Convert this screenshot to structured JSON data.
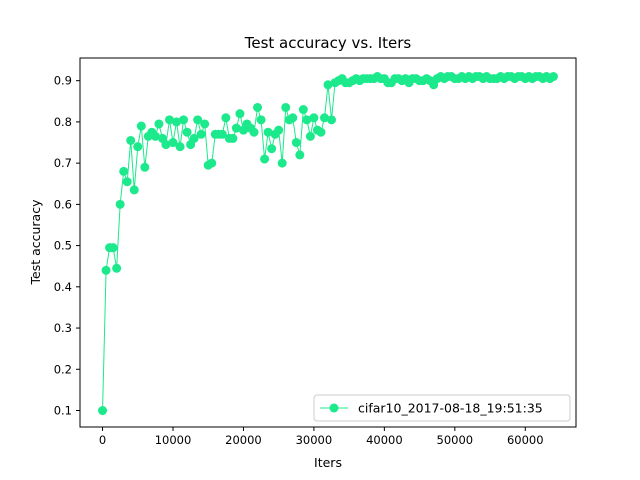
{
  "chart_data": {
    "type": "line",
    "title": "Test accuracy  vs. Iters",
    "xlabel": "Iters",
    "ylabel": "Test accuracy",
    "xlim": [
      -3200,
      67200
    ],
    "ylim": [
      0.06,
      0.955
    ],
    "xticks": [
      0,
      10000,
      20000,
      30000,
      40000,
      50000,
      60000
    ],
    "xtick_labels": [
      "0",
      "10000",
      "20000",
      "30000",
      "40000",
      "50000",
      "60000"
    ],
    "yticks": [
      0.1,
      0.2,
      0.3,
      0.4,
      0.5,
      0.6,
      0.7,
      0.8,
      0.9
    ],
    "ytick_labels": [
      "0.1",
      "0.2",
      "0.3",
      "0.4",
      "0.5",
      "0.6",
      "0.7",
      "0.8",
      "0.9"
    ],
    "grid": false,
    "legend_position": "lower-right",
    "series": [
      {
        "name": "cifar10_2017-08-18_19:51:35",
        "color": "#1ce98b",
        "marker": "circle",
        "x": [
          0,
          500,
          1000,
          1500,
          2000,
          2500,
          3000,
          3500,
          4000,
          4500,
          5000,
          5500,
          6000,
          6500,
          7000,
          7500,
          8000,
          8500,
          9000,
          9500,
          10000,
          10500,
          11000,
          11500,
          12000,
          12500,
          13000,
          13500,
          14000,
          14500,
          15000,
          15500,
          16000,
          16500,
          17000,
          17500,
          18000,
          18500,
          19000,
          19500,
          20000,
          20500,
          21000,
          21500,
          22000,
          22500,
          23000,
          23500,
          24000,
          24500,
          25000,
          25500,
          26000,
          26500,
          27000,
          27500,
          28000,
          28500,
          29000,
          29500,
          30000,
          30500,
          31000,
          31500,
          32000,
          32500,
          33000,
          33500,
          34000,
          34500,
          35000,
          35500,
          36000,
          36500,
          37000,
          37500,
          38000,
          38500,
          39000,
          39500,
          40000,
          40500,
          41000,
          41500,
          42000,
          42500,
          43000,
          43500,
          44000,
          44500,
          45000,
          45500,
          46000,
          46500,
          47000,
          47500,
          48000,
          48500,
          49000,
          49500,
          50000,
          50500,
          51000,
          51500,
          52000,
          52500,
          53000,
          53500,
          54000,
          54500,
          55000,
          55500,
          56000,
          56500,
          57000,
          57500,
          58000,
          58500,
          59000,
          59500,
          60000,
          60500,
          61000,
          61500,
          62000,
          62500,
          63000,
          63500,
          64000
        ],
        "y": [
          0.1,
          0.44,
          0.495,
          0.495,
          0.445,
          0.6,
          0.68,
          0.655,
          0.755,
          0.635,
          0.74,
          0.79,
          0.69,
          0.765,
          0.775,
          0.765,
          0.795,
          0.76,
          0.745,
          0.805,
          0.75,
          0.8,
          0.74,
          0.805,
          0.775,
          0.745,
          0.76,
          0.805,
          0.77,
          0.795,
          0.695,
          0.7,
          0.77,
          0.77,
          0.77,
          0.81,
          0.76,
          0.76,
          0.785,
          0.82,
          0.78,
          0.795,
          0.785,
          0.775,
          0.835,
          0.805,
          0.71,
          0.775,
          0.735,
          0.77,
          0.78,
          0.7,
          0.835,
          0.805,
          0.81,
          0.75,
          0.72,
          0.83,
          0.805,
          0.765,
          0.81,
          0.78,
          0.775,
          0.81,
          0.89,
          0.805,
          0.895,
          0.9,
          0.905,
          0.895,
          0.895,
          0.9,
          0.905,
          0.9,
          0.905,
          0.905,
          0.905,
          0.905,
          0.91,
          0.905,
          0.905,
          0.895,
          0.895,
          0.905,
          0.905,
          0.9,
          0.905,
          0.895,
          0.905,
          0.905,
          0.9,
          0.9,
          0.905,
          0.9,
          0.89,
          0.905,
          0.91,
          0.905,
          0.91,
          0.91,
          0.905,
          0.905,
          0.91,
          0.905,
          0.91,
          0.905,
          0.91,
          0.91,
          0.905,
          0.91,
          0.905,
          0.905,
          0.905,
          0.91,
          0.905,
          0.91,
          0.91,
          0.905,
          0.91,
          0.91,
          0.905,
          0.91,
          0.905,
          0.91,
          0.91,
          0.905,
          0.91,
          0.905,
          0.91
        ]
      }
    ]
  }
}
